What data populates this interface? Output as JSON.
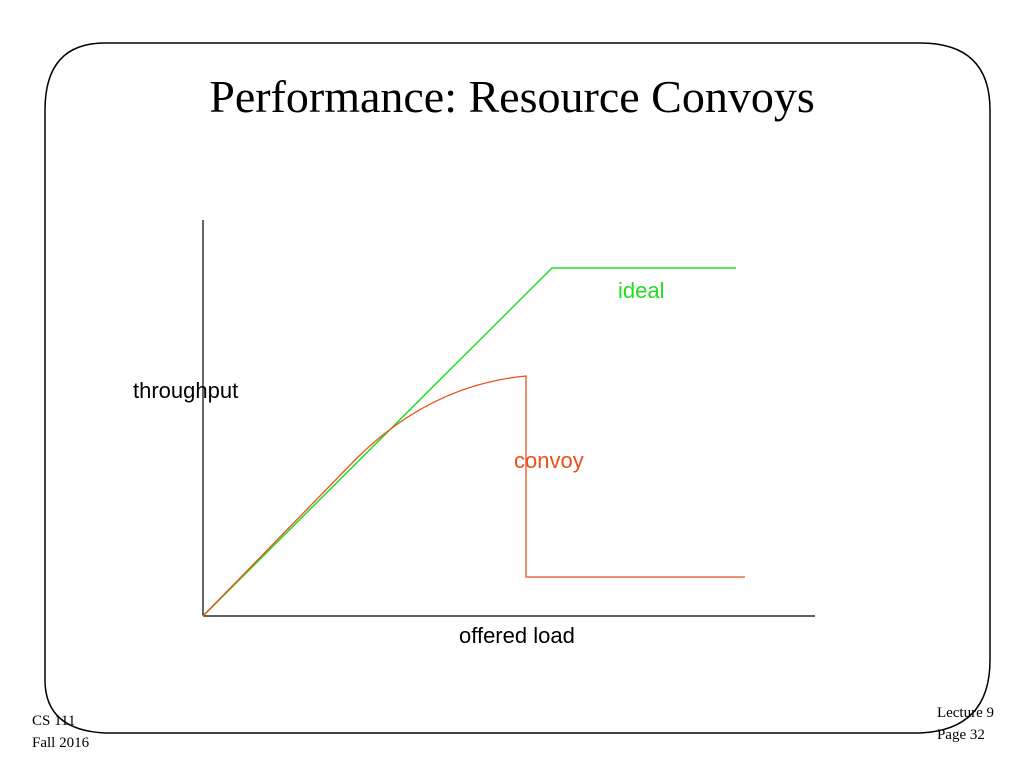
{
  "slide": {
    "title": "Performance: Resource Convoys"
  },
  "diagram": {
    "y_axis_label": "throughput",
    "x_axis_label": "offered load",
    "curves": [
      {
        "name": "ideal",
        "color": "#22dd22"
      },
      {
        "name": "convoy",
        "color": "#e8501c"
      }
    ]
  },
  "footer": {
    "course": "CS 111",
    "term": "Fall 2016",
    "lecture": "Lecture 9",
    "page": "Page 32"
  }
}
